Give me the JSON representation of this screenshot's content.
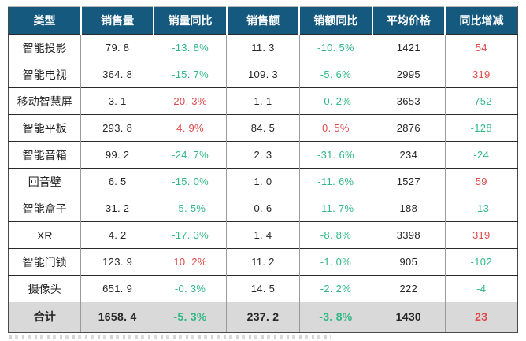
{
  "colors": {
    "header_bg": "#15597F",
    "header_text": "#FFFFFF",
    "up_red": "#E04A4A",
    "down_green": "#31B886",
    "body_text": "#262626",
    "total_row_bg": "#D9D9D9",
    "row_bg": "#FFFFFF"
  },
  "table": {
    "columns": [
      "类型",
      "销售量",
      "销量同比",
      "销售额",
      "销额同比",
      "平均价格",
      "同比增减"
    ],
    "rows": [
      {
        "label": "智能投影",
        "cells": [
          {
            "v": "79. 8",
            "cls": "plain"
          },
          {
            "v": "-13. 8%",
            "cls": "down"
          },
          {
            "v": "11. 3",
            "cls": "plain"
          },
          {
            "v": "-10. 5%",
            "cls": "down"
          },
          {
            "v": "1421",
            "cls": "plain"
          },
          {
            "v": "54",
            "cls": "up"
          }
        ]
      },
      {
        "label": "智能电视",
        "cells": [
          {
            "v": "364. 8",
            "cls": "plain"
          },
          {
            "v": "-15. 7%",
            "cls": "down"
          },
          {
            "v": "109. 3",
            "cls": "plain"
          },
          {
            "v": "-5. 6%",
            "cls": "down"
          },
          {
            "v": "2995",
            "cls": "plain"
          },
          {
            "v": "319",
            "cls": "up"
          }
        ]
      },
      {
        "label": "移动智慧屏",
        "cells": [
          {
            "v": "3. 1",
            "cls": "plain"
          },
          {
            "v": "20. 3%",
            "cls": "up"
          },
          {
            "v": "1. 1",
            "cls": "plain"
          },
          {
            "v": "-0. 2%",
            "cls": "down"
          },
          {
            "v": "3653",
            "cls": "plain"
          },
          {
            "v": "-752",
            "cls": "down"
          }
        ]
      },
      {
        "label": "智能平板",
        "cells": [
          {
            "v": "293. 8",
            "cls": "plain"
          },
          {
            "v": "4. 9%",
            "cls": "up"
          },
          {
            "v": "84. 5",
            "cls": "plain"
          },
          {
            "v": "0. 5%",
            "cls": "up"
          },
          {
            "v": "2876",
            "cls": "plain"
          },
          {
            "v": "-128",
            "cls": "down"
          }
        ]
      },
      {
        "label": "智能音箱",
        "cells": [
          {
            "v": "99. 2",
            "cls": "plain"
          },
          {
            "v": "-24. 7%",
            "cls": "down"
          },
          {
            "v": "2. 3",
            "cls": "plain"
          },
          {
            "v": "-31. 6%",
            "cls": "down"
          },
          {
            "v": "234",
            "cls": "plain"
          },
          {
            "v": "-24",
            "cls": "down"
          }
        ]
      },
      {
        "label": "回音壁",
        "cells": [
          {
            "v": "6. 5",
            "cls": "plain"
          },
          {
            "v": "-15. 0%",
            "cls": "down"
          },
          {
            "v": "1. 0",
            "cls": "plain"
          },
          {
            "v": "-11. 6%",
            "cls": "down"
          },
          {
            "v": "1527",
            "cls": "plain"
          },
          {
            "v": "59",
            "cls": "up"
          }
        ]
      },
      {
        "label": "智能盒子",
        "cells": [
          {
            "v": "31. 2",
            "cls": "plain"
          },
          {
            "v": "-5. 5%",
            "cls": "down"
          },
          {
            "v": "0. 6",
            "cls": "plain"
          },
          {
            "v": "-11. 7%",
            "cls": "down"
          },
          {
            "v": "188",
            "cls": "plain"
          },
          {
            "v": "-13",
            "cls": "down"
          }
        ]
      },
      {
        "label": "XR",
        "cells": [
          {
            "v": "4. 2",
            "cls": "plain"
          },
          {
            "v": "-17. 3%",
            "cls": "down"
          },
          {
            "v": "1. 4",
            "cls": "plain"
          },
          {
            "v": "-8. 8%",
            "cls": "down"
          },
          {
            "v": "3398",
            "cls": "plain"
          },
          {
            "v": "319",
            "cls": "up"
          }
        ]
      },
      {
        "label": "智能门锁",
        "cells": [
          {
            "v": "123. 9",
            "cls": "plain"
          },
          {
            "v": "10. 2%",
            "cls": "up"
          },
          {
            "v": "11. 2",
            "cls": "plain"
          },
          {
            "v": "-1. 0%",
            "cls": "down"
          },
          {
            "v": "905",
            "cls": "plain"
          },
          {
            "v": "-102",
            "cls": "down"
          }
        ]
      },
      {
        "label": "摄像头",
        "cells": [
          {
            "v": "651. 9",
            "cls": "plain"
          },
          {
            "v": "-0. 3%",
            "cls": "down"
          },
          {
            "v": "14. 5",
            "cls": "plain"
          },
          {
            "v": "-2. 2%",
            "cls": "down"
          },
          {
            "v": "222",
            "cls": "plain"
          },
          {
            "v": "-4",
            "cls": "down"
          }
        ]
      }
    ],
    "total": {
      "label": "合计",
      "cells": [
        {
          "v": "1658. 4",
          "cls": "plain"
        },
        {
          "v": "-5. 3%",
          "cls": "down"
        },
        {
          "v": "237. 2",
          "cls": "plain"
        },
        {
          "v": "-3. 8%",
          "cls": "down"
        },
        {
          "v": "1430",
          "cls": "plain"
        },
        {
          "v": "23",
          "cls": "up"
        }
      ]
    }
  },
  "chart_data": {
    "type": "table",
    "columns": [
      "类型",
      "销售量",
      "销量同比",
      "销售额",
      "销额同比",
      "平均价格",
      "同比增减"
    ],
    "rows": [
      [
        "智能投影",
        79.8,
        "-13.8%",
        11.3,
        "-10.5%",
        1421,
        54
      ],
      [
        "智能电视",
        364.8,
        "-15.7%",
        109.3,
        "-5.6%",
        2995,
        319
      ],
      [
        "移动智慧屏",
        3.1,
        "20.3%",
        1.1,
        "-0.2%",
        3653,
        -752
      ],
      [
        "智能平板",
        293.8,
        "4.9%",
        84.5,
        "0.5%",
        2876,
        -128
      ],
      [
        "智能音箱",
        99.2,
        "-24.7%",
        2.3,
        "-31.6%",
        234,
        -24
      ],
      [
        "回音壁",
        6.5,
        "-15.0%",
        1.0,
        "-11.6%",
        1527,
        59
      ],
      [
        "智能盒子",
        31.2,
        "-5.5%",
        0.6,
        "-11.7%",
        188,
        -13
      ],
      [
        "XR",
        4.2,
        "-17.3%",
        1.4,
        "-8.8%",
        3398,
        319
      ],
      [
        "智能门锁",
        123.9,
        "10.2%",
        11.2,
        "-1.0%",
        905,
        -102
      ],
      [
        "摄像头",
        651.9,
        "-0.3%",
        14.5,
        "-2.2%",
        222,
        -4
      ],
      [
        "合计",
        1658.4,
        "-5.3%",
        237.2,
        "-3.8%",
        1430,
        23
      ]
    ],
    "layout": {
      "header_style": "dark-blue background, white bold text",
      "total_row_style": "gray background, bold",
      "color_coding": "positive values red, negative values green",
      "grid": "on"
    }
  }
}
